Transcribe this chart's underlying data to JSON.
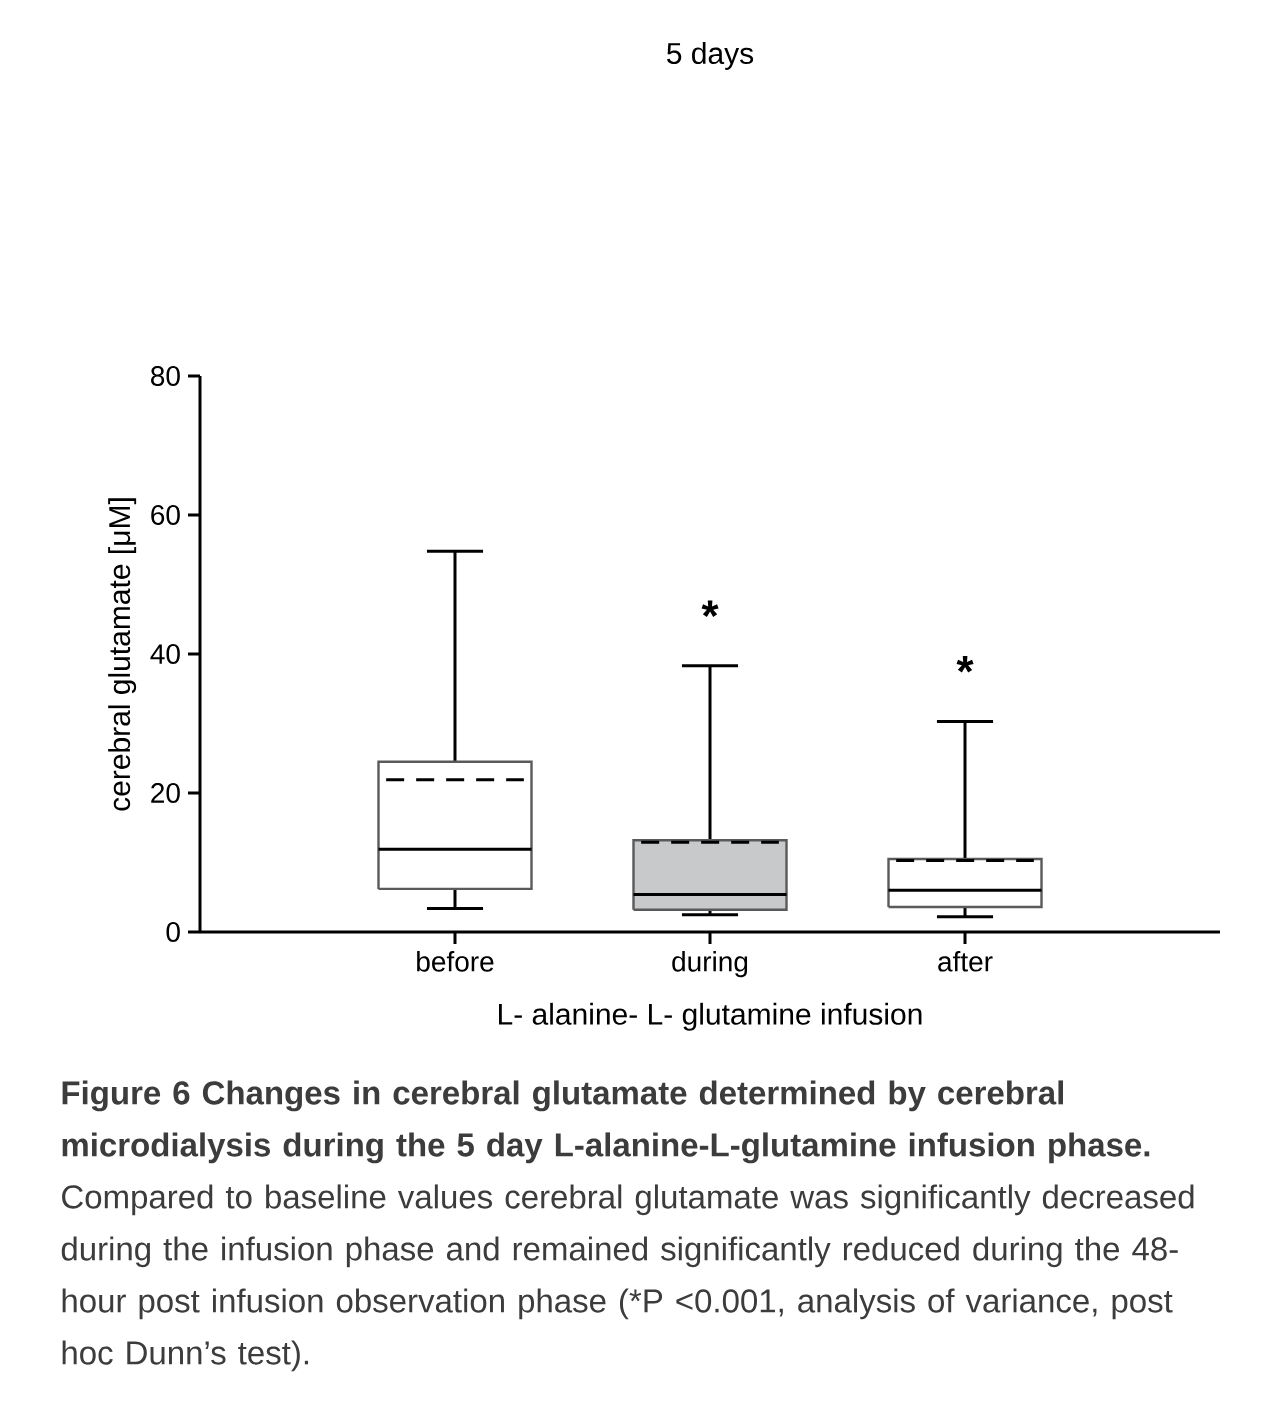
{
  "chart_data": {
    "type": "box",
    "title": "5 days",
    "xlabel": "L- alanine- L- glutamine infusion",
    "ylabel": "cerebral glutamate [μM]",
    "categories": [
      "before",
      "during",
      "after"
    ],
    "boxes": [
      {
        "low": 3.4,
        "q1": 6.2,
        "median": 11.9,
        "q3": 24.5,
        "high": 54.8,
        "mean": 21.9
      },
      {
        "low": 2.5,
        "q1": 3.2,
        "median": 5.4,
        "q3": 13.2,
        "high": 38.3,
        "mean": 12.9
      },
      {
        "low": 2.2,
        "q1": 3.6,
        "median": 6.0,
        "q3": 10.5,
        "high": 30.3,
        "mean": 10.3
      }
    ],
    "colors": [
      "#ffffff",
      "#c8c9cb",
      "#ffffff"
    ],
    "ylim": [
      0,
      80
    ],
    "yticks": [
      0,
      20,
      40,
      60,
      80
    ],
    "annotations": [
      "*",
      "*",
      "**Figure 6 Changes in cerebral glutamate determined by cerebral microdialysis during the 5 day L-alanine-L-glutamine infusion phase.** Compared to baseline values cerebral glutamate was significantly decreased during the infusion phase and remained significantly reduced during the 48-hour post infusion observation phase (*P <0.001, analysis of variance, post hoc Dunn’s test)."
    ]
  }
}
